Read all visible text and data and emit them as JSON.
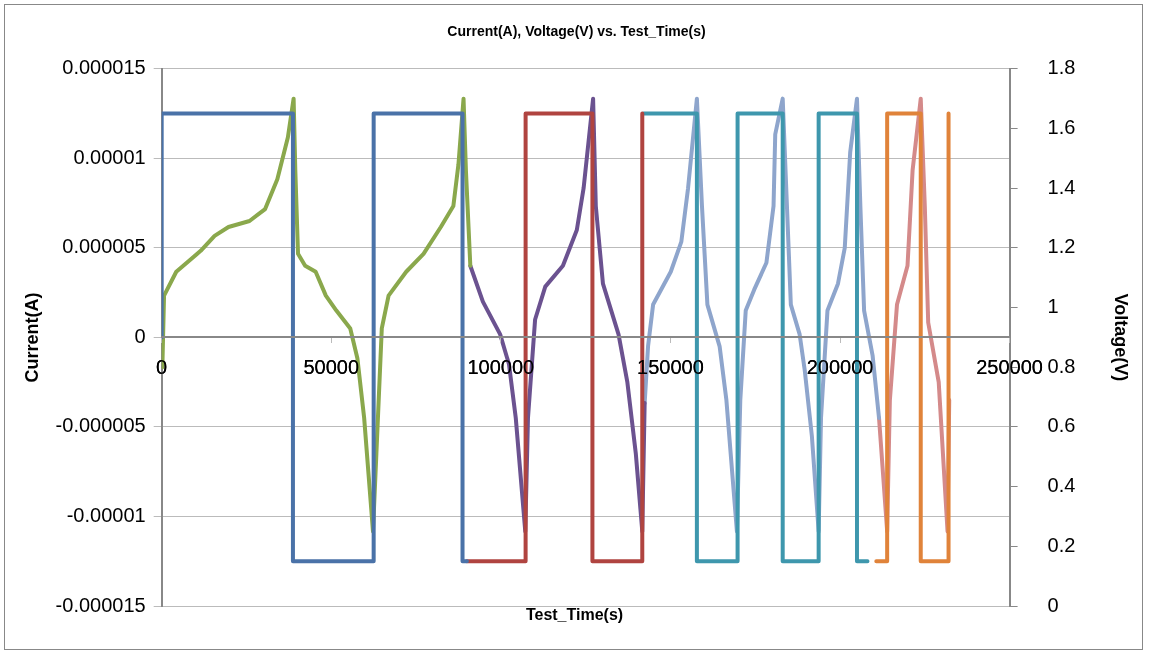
{
  "chart_data": {
    "type": "line",
    "title": "Current(A), Voltage(V) vs. Test_Time(s)",
    "xlabel": "Test_Time(s)",
    "ylabel": "Current(A)",
    "y2label": "Voltage(V)",
    "xlim": [
      0,
      250000
    ],
    "xticks": [
      0,
      50000,
      100000,
      150000,
      200000,
      250000
    ],
    "ylim": [
      -1.5e-05,
      1.5e-05
    ],
    "yticks": [
      {
        "value": -1.5e-05,
        "label": "-0.000015"
      },
      {
        "value": -1e-05,
        "label": "-0.00001"
      },
      {
        "value": -5e-06,
        "label": "-0.000005"
      },
      0,
      {
        "value": 5e-06,
        "label": "0.000005"
      },
      {
        "value": 1e-05,
        "label": "0.00001"
      },
      {
        "value": 1.5e-05,
        "label": "0.000015"
      }
    ],
    "y2lim": [
      0,
      1.8
    ],
    "y2ticks": [
      0,
      0.2,
      0.4,
      0.6,
      0.8,
      1,
      1.2,
      1.4,
      1.6,
      1.8
    ],
    "grid": "y",
    "legend": false,
    "marker": "none",
    "line_style": "solid",
    "series": [
      {
        "color": "#4a72a8",
        "x": [
          0,
          0,
          38700,
          38700,
          62500,
          62500,
          88700,
          88700,
          90000
        ],
        "values": [
          0,
          1.25e-05,
          1.25e-05,
          -1.25e-05,
          -1.25e-05,
          1.25e-05,
          1.25e-05,
          -1.25e-05,
          -1.25e-05
        ]
      },
      {
        "color": "#b04440",
        "x": [
          90000,
          107300,
          107300,
          127000,
          127000,
          141700,
          141700
        ],
        "values": [
          -1.25e-05,
          -1.25e-05,
          1.25e-05,
          1.25e-05,
          -1.25e-05,
          -1.25e-05,
          1.25e-05
        ]
      },
      {
        "color": "#3e97ad",
        "x": [
          142100,
          157800,
          157800,
          169800,
          169800,
          183100,
          183100,
          193700,
          193700,
          205000,
          205000,
          208100
        ],
        "values": [
          1.25e-05,
          1.25e-05,
          -1.25e-05,
          -1.25e-05,
          1.25e-05,
          1.25e-05,
          -1.25e-05,
          -1.25e-05,
          1.25e-05,
          1.25e-05,
          -1.25e-05,
          -1.25e-05
        ]
      },
      {
        "color": "#e0833a",
        "x": [
          210700,
          213900,
          213900,
          223800,
          223800,
          232000,
          232000
        ],
        "values": [
          -1.25e-05,
          -1.25e-05,
          1.25e-05,
          1.25e-05,
          -1.25e-05,
          -1.25e-05,
          1.25e-05
        ]
      },
      {
        "color": "#8aa84c",
        "axis": "y2",
        "x": [
          200,
          700,
          4300,
          11500,
          15600,
          19700,
          25900,
          30500,
          34100,
          37200,
          38900,
          39400,
          40200,
          42300,
          45400,
          48400,
          51500,
          55600,
          57700,
          59700,
          62300,
          63300,
          64900,
          66900,
          72100,
          77200,
          82300,
          86000,
          87500,
          89000,
          89700,
          91000
        ],
        "values": [
          0.8,
          1.04,
          1.12,
          1.19,
          1.24,
          1.27,
          1.29,
          1.33,
          1.43,
          1.57,
          1.7,
          1.46,
          1.18,
          1.14,
          1.12,
          1.04,
          0.99,
          0.93,
          0.83,
          0.63,
          0.25,
          0.51,
          0.93,
          1.04,
          1.12,
          1.18,
          1.27,
          1.34,
          1.48,
          1.7,
          1.46,
          1.14
        ]
      },
      {
        "color": "#6b5290",
        "axis": "y2",
        "x": [
          91000,
          94700,
          99800,
          102400,
          104400,
          107200,
          108000,
          110100,
          113100,
          118300,
          122400,
          124400,
          127200,
          128000,
          130100,
          134700,
          137300,
          139800,
          141700,
          142400
        ],
        "values": [
          1.14,
          1.02,
          0.91,
          0.81,
          0.63,
          0.25,
          0.63,
          0.96,
          1.07,
          1.14,
          1.26,
          1.4,
          1.7,
          1.34,
          1.08,
          0.91,
          0.75,
          0.51,
          0.25,
          0.68
        ]
      },
      {
        "color": "#8ea5cc",
        "axis": "y2",
        "x": [
          142400,
          143400,
          144900,
          150100,
          153200,
          155200,
          157800,
          159300,
          160900,
          164500,
          166500,
          169600,
          170600,
          172200,
          174700,
          178300,
          180400,
          180900,
          183100,
          185500,
          188100,
          189600,
          191700,
          193700,
          194400,
          196300,
          199400,
          201400,
          203000,
          205000,
          206000,
          207100,
          209600,
          211500
        ],
        "values": [
          0.68,
          0.87,
          1.01,
          1.12,
          1.22,
          1.4,
          1.7,
          1.34,
          1.01,
          0.87,
          0.69,
          0.25,
          0.69,
          0.99,
          1.06,
          1.15,
          1.34,
          1.58,
          1.7,
          1.01,
          0.91,
          0.79,
          0.57,
          0.25,
          0.63,
          0.99,
          1.08,
          1.2,
          1.52,
          1.7,
          1.34,
          0.99,
          0.84,
          0.63
        ]
      },
      {
        "color": "#d48a8a",
        "axis": "y2",
        "x": [
          211500,
          213900,
          214700,
          216800,
          219900,
          221400,
          223800,
          225000,
          226000,
          229100,
          231700,
          232200
        ],
        "values": [
          0.63,
          0.25,
          0.69,
          1.01,
          1.14,
          1.46,
          1.7,
          1.34,
          0.95,
          0.75,
          0.25,
          0.69
        ]
      }
    ]
  }
}
